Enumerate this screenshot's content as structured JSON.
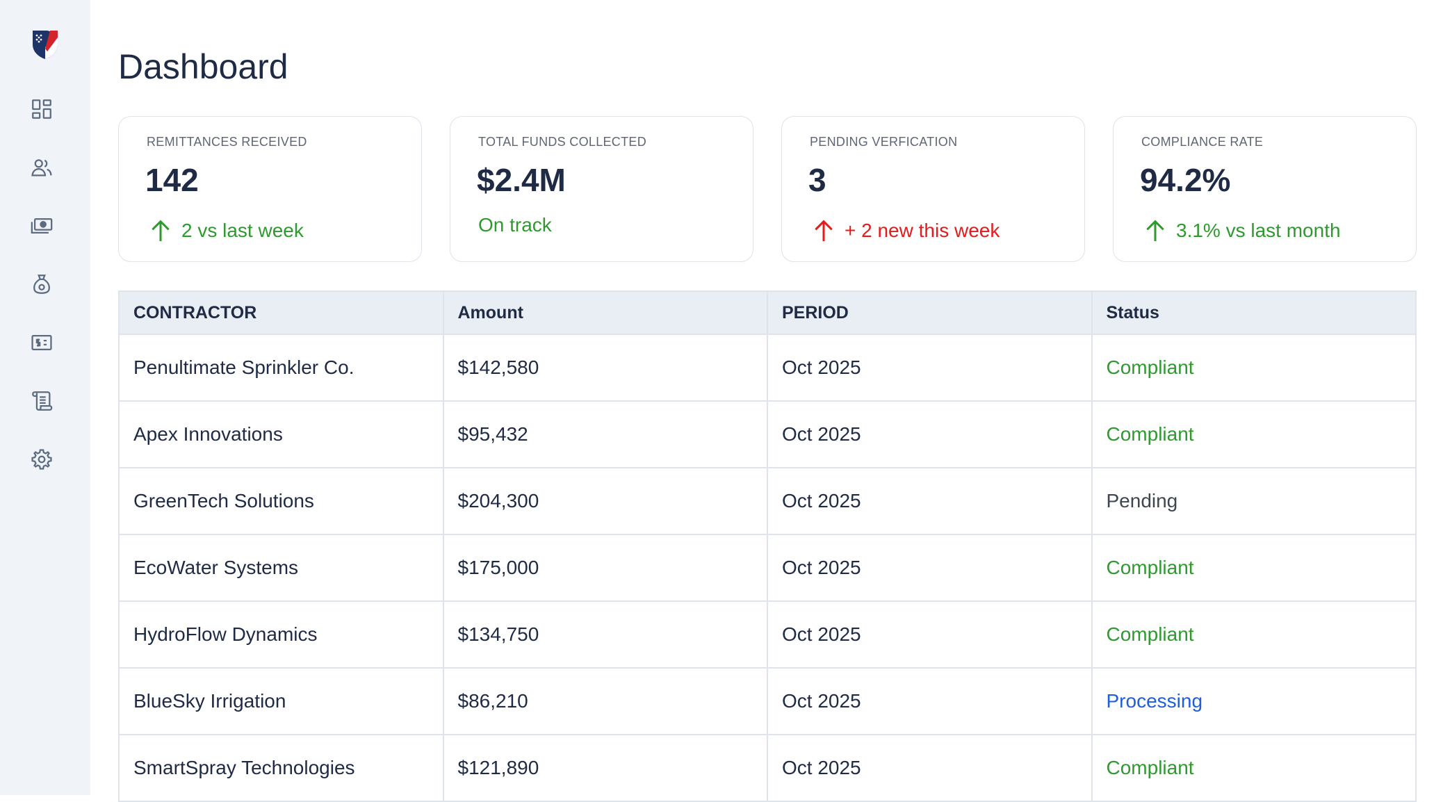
{
  "sidebar": {
    "logo": "shield-logo",
    "items": [
      {
        "icon": "dashboard-grid-icon"
      },
      {
        "icon": "users-icon"
      },
      {
        "icon": "money-icon"
      },
      {
        "icon": "money-bag-icon"
      },
      {
        "icon": "dollar-card-icon"
      },
      {
        "icon": "scroll-icon"
      },
      {
        "icon": "gear-icon"
      }
    ]
  },
  "header": {
    "title": "Dashboard"
  },
  "cards": [
    {
      "label": "REMITTANCES RECEIVED",
      "value": "142",
      "trend": "2 vs last week",
      "trend_color": "#2e9a2e",
      "arrow": true
    },
    {
      "label": "TOTAL FUNDS COLLECTED",
      "value": "$2.4M",
      "trend": "On track",
      "trend_color": "#2e9a2e",
      "arrow": false
    },
    {
      "label": "PENDING VERFICATION",
      "value": "3",
      "trend": "+ 2 new this week",
      "trend_color": "#e51b1b",
      "arrow": true
    },
    {
      "label": "COMPLIANCE RATE",
      "value": "94.2%",
      "trend": "3.1% vs last month",
      "trend_color": "#2e9a2e",
      "arrow": true
    }
  ],
  "table": {
    "headers": [
      "CONTRACTOR",
      "Amount",
      "PERIOD",
      "Status"
    ],
    "rows": [
      {
        "contractor": "Penultimate Sprinkler Co.",
        "amount": "$142,580",
        "period": "Oct 2025",
        "status": "Compliant"
      },
      {
        "contractor": "Apex Innovations",
        "amount": "$95,432",
        "period": "Oct 2025",
        "status": "Compliant"
      },
      {
        "contractor": "GreenTech Solutions",
        "amount": "$204,300",
        "period": "Oct 2025",
        "status": "Pending"
      },
      {
        "contractor": "EcoWater Systems",
        "amount": "$175,000",
        "period": "Oct 2025",
        "status": "Compliant"
      },
      {
        "contractor": "HydroFlow Dynamics",
        "amount": "$134,750",
        "period": "Oct 2025",
        "status": "Compliant"
      },
      {
        "contractor": "BlueSky Irrigation",
        "amount": "$86,210",
        "period": "Oct 2025",
        "status": "Processing"
      },
      {
        "contractor": "SmartSpray Technologies",
        "amount": "$121,890",
        "period": "Oct 2025",
        "status": "Compliant"
      }
    ]
  },
  "colors": {
    "compliant": "#2e9a2e",
    "pending": "#3f4650",
    "processing": "#1e5fd9"
  }
}
